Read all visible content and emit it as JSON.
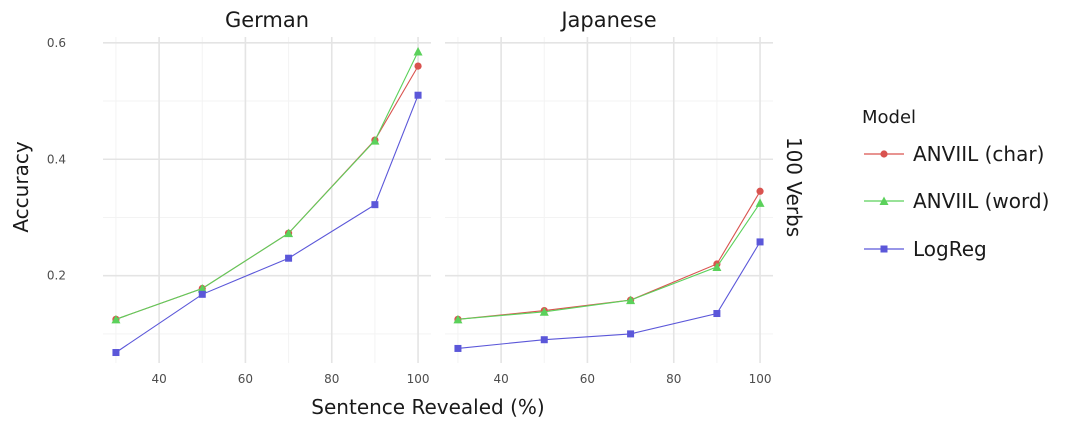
{
  "chart_data": {
    "type": "line",
    "xlabel": "Sentence Revealed (%)",
    "ylabel": "Accuracy",
    "row_strip": "100 Verbs",
    "xlim": [
      27,
      103
    ],
    "ylim": [
      0.05,
      0.61
    ],
    "x_ticks": [
      40,
      60,
      80,
      100
    ],
    "y_ticks": [
      0.2,
      0.4,
      0.6
    ],
    "x_tick_labels": [
      "40",
      "60",
      "80",
      "100"
    ],
    "y_tick_labels": [
      "0.2",
      "0.4",
      "0.6"
    ],
    "grid": true,
    "legend_position": "right",
    "legend": {
      "title": "Model",
      "entries": [
        "ANVIIL (char)",
        "ANVIIL (word)",
        "LogReg"
      ]
    },
    "facets": [
      {
        "name": "German",
        "x": [
          30,
          50,
          70,
          90,
          100
        ],
        "series": [
          {
            "name": "ANVIIL (char)",
            "values": [
              0.125,
              0.178,
              0.273,
              0.433,
              0.56
            ]
          },
          {
            "name": "ANVIIL (word)",
            "values": [
              0.125,
              0.178,
              0.273,
              0.432,
              0.585
            ]
          },
          {
            "name": "LogReg",
            "values": [
              0.068,
              0.168,
              0.23,
              0.322,
              0.51
            ]
          }
        ]
      },
      {
        "name": "Japanese",
        "x": [
          30,
          50,
          70,
          90,
          100
        ],
        "series": [
          {
            "name": "ANVIIL (char)",
            "values": [
              0.125,
              0.14,
              0.158,
              0.22,
              0.345
            ]
          },
          {
            "name": "ANVIIL (word)",
            "values": [
              0.125,
              0.138,
              0.158,
              0.215,
              0.325
            ]
          },
          {
            "name": "LogReg",
            "values": [
              0.075,
              0.09,
              0.1,
              0.135,
              0.258
            ]
          }
        ]
      }
    ],
    "colors": {
      "ANVIIL (char)": "#d9534f",
      "ANVIIL (word)": "#5bd15b",
      "LogReg": "#5b57d9"
    },
    "markers": {
      "ANVIIL (char)": "circle",
      "ANVIIL (word)": "triangle",
      "LogReg": "square"
    }
  }
}
